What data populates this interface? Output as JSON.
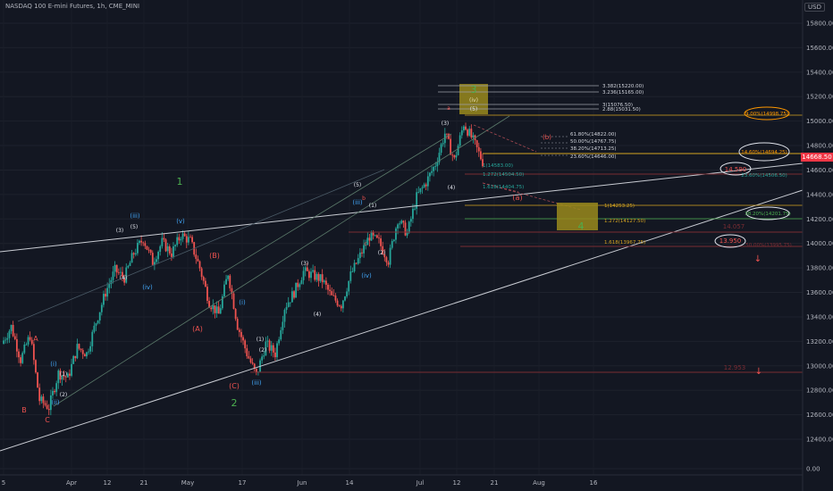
{
  "header": {
    "title": "NASDAQ 100 E-mini Futures, 1h, CME_MINI",
    "currency": "USD"
  },
  "colors": {
    "background": "#131722",
    "candle_up": "#26a69a",
    "candle_down": "#ef5350",
    "wave_green": "#4caf50",
    "wave_red": "#ef5350",
    "wave_blue": "#42a5f5",
    "box_fill": "#9a8a1c",
    "line_white": "#c9ccd3",
    "orange": "#ff9800"
  },
  "chart_data": {
    "type": "candlestick",
    "title": "NASDAQ 100 E-mini Futures, 1h, CME_MINI",
    "y_ticks": [
      "15800.00",
      "15600.00",
      "15400.00",
      "15200.00",
      "15000.00",
      "14800.00",
      "14600.00",
      "14400.00",
      "14200.00",
      "14000.00",
      "13800.00",
      "13600.00",
      "13400.00",
      "13200.00",
      "13000.00",
      "12800.00",
      "12600.00",
      "12400.00",
      "0.00"
    ],
    "x_ticks": [
      "5",
      "Apr",
      "12",
      "21",
      "May",
      "17",
      "Jun",
      "14",
      "Jul",
      "12",
      "21",
      "Aug",
      "16"
    ],
    "last_price": "14668.50",
    "price_path": [
      [
        0,
        13180
      ],
      [
        1,
        13320
      ],
      [
        2,
        13050
      ],
      [
        3,
        13250
      ],
      [
        4,
        12720
      ],
      [
        5,
        12660
      ],
      [
        6,
        12940
      ],
      [
        7,
        12900
      ],
      [
        8,
        13150
      ],
      [
        9,
        13100
      ],
      [
        10,
        13360
      ],
      [
        11,
        13600
      ],
      [
        12,
        13780
      ],
      [
        13,
        13720
      ],
      [
        14,
        13920
      ],
      [
        15,
        14040
      ],
      [
        16,
        13850
      ],
      [
        17,
        14010
      ],
      [
        18,
        13920
      ],
      [
        19,
        14070
      ],
      [
        20,
        14020
      ],
      [
        21,
        13800
      ],
      [
        22,
        13520
      ],
      [
        23,
        13420
      ],
      [
        24,
        13760
      ],
      [
        25,
        13330
      ],
      [
        26,
        13100
      ],
      [
        27,
        12920
      ],
      [
        28,
        13180
      ],
      [
        29,
        13100
      ],
      [
        30,
        13480
      ],
      [
        31,
        13600
      ],
      [
        32,
        13770
      ],
      [
        33,
        13740
      ],
      [
        34,
        13700
      ],
      [
        35,
        13560
      ],
      [
        36,
        13500
      ],
      [
        37,
        13740
      ],
      [
        38,
        13900
      ],
      [
        39,
        14060
      ],
      [
        40,
        14010
      ],
      [
        41,
        13860
      ],
      [
        42,
        14200
      ],
      [
        43,
        14080
      ],
      [
        44,
        14380
      ],
      [
        45,
        14500
      ],
      [
        46,
        14650
      ],
      [
        47,
        14900
      ],
      [
        48,
        14680
      ],
      [
        49,
        14980
      ],
      [
        50,
        14840
      ],
      [
        51,
        14668
      ]
    ],
    "wave_labels_green": [
      "1",
      "2",
      "3",
      "4"
    ],
    "wave_labels_red": [
      "A",
      "B",
      "C",
      "(A)",
      "(B)",
      "(C)",
      "(a)",
      "(b)",
      "a",
      "b",
      "c"
    ],
    "wave_labels_blue": [
      "(i)",
      "(ii)",
      "(iii)",
      "(iv)",
      "(v)"
    ],
    "wave_labels_white": [
      "(1)",
      "(2)",
      "(3)",
      "(4)",
      "(5)"
    ],
    "wave_labels_yellow": [
      "(iv)",
      "(v)"
    ],
    "fib_upper": [
      "3.382(15220.00)",
      "3.236(15165.00)",
      "3(15076.50)",
      "2.88(15031.50)"
    ],
    "fib_retrace": [
      "61.80%(14822.00)",
      "50.00%(14767.75)",
      "38.20%(14713.25)",
      "23.60%(14646.00)"
    ],
    "fib_teal": [
      "1(14583.00)",
      "1.272(14504.50)",
      "1.618(14404.75)"
    ],
    "fib_target": [
      "1(14253.25)",
      "1.272(14127.50)",
      "1.618(13967.75)"
    ],
    "right_labels": [
      "9.00%(14998.75)",
      "14.60%(14694.25)",
      "14.590",
      "23.60%(14506.50)",
      "38.20%(14201.75)",
      "14.057",
      "13.950",
      "50.00%(13995.75)",
      "12.953"
    ]
  }
}
